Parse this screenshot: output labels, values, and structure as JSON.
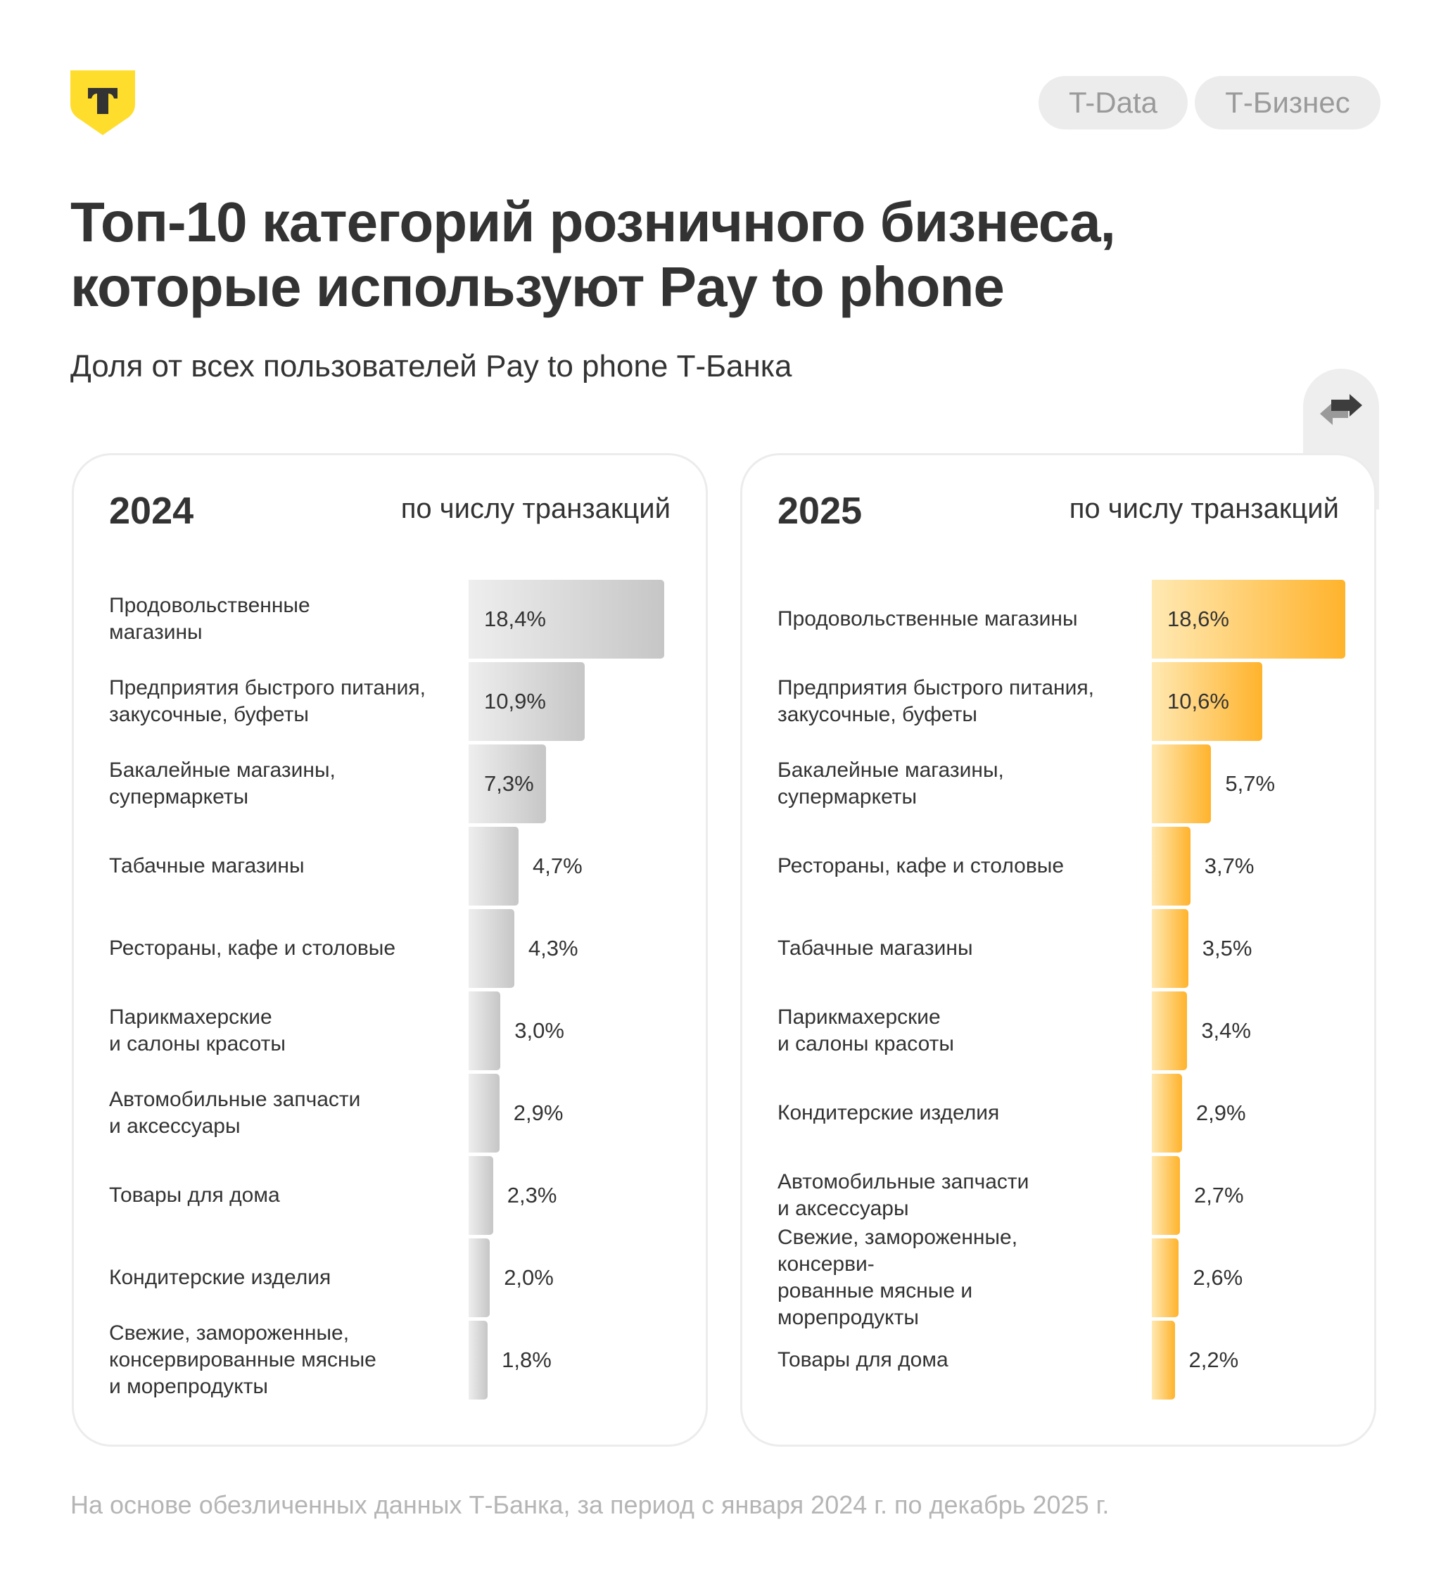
{
  "header": {
    "logo_letter": "Т",
    "pills": [
      "T-Data",
      "Т-Бизнес"
    ]
  },
  "title_lines": [
    "Топ-10 категорий розничного бизнеса,",
    "которые используют Pay to phone"
  ],
  "subtitle": "Доля от всех пользователей Pay to phone Т-Банка",
  "colors": {
    "brand": "#FFDD2D",
    "bar_2024_from": "#eeeeee",
    "bar_2024_to": "#c6c6c6",
    "bar_2025_from": "#ffe9b3",
    "bar_2025_to": "#ffb32c"
  },
  "chart_data": [
    {
      "type": "bar",
      "orientation": "horizontal",
      "title": "2024",
      "metric": "по числу транзакций",
      "unit": "%",
      "categories": [
        "Продовольственные\nмагазины",
        "Предприятия быстрого питания,\nзакусочные, буфеты",
        "Бакалейные магазины,\nсупермаркеты",
        "Табачные магазины",
        "Рестораны, кафе и столовые",
        "Парикмахерские\nи салоны красоты",
        "Автомобильные запчасти\nи аксессуары",
        "Товары для дома",
        "Кондитерские изделия",
        "Свежие, замороженные,\nконсервированные мясные\nи морепродукты"
      ],
      "values": [
        18.4,
        10.9,
        7.3,
        4.7,
        4.3,
        3.0,
        2.9,
        2.3,
        2.0,
        1.8
      ],
      "labels": [
        "18,4%",
        "10,9%",
        "7,3%",
        "4,7%",
        "4,3%",
        "3,0%",
        "2,9%",
        "2,3%",
        "2,0%",
        "1,8%"
      ]
    },
    {
      "type": "bar",
      "orientation": "horizontal",
      "title": "2025",
      "metric": "по числу транзакций",
      "unit": "%",
      "categories": [
        "Продовольственные магазины",
        "Предприятия быстрого питания,\nзакусочные, буфеты",
        "Бакалейные магазины,\nсупермаркеты",
        "Рестораны, кафе и столовые",
        "Табачные магазины",
        "Парикмахерские\nи салоны красоты",
        "Кондитерские изделия",
        "Автомобильные запчасти\nи аксессуары",
        "Свежие, замороженные, консерви-\nрованные мясные и морепродукты",
        "Товары для дома"
      ],
      "values": [
        18.6,
        10.6,
        5.7,
        3.7,
        3.5,
        3.4,
        2.9,
        2.7,
        2.6,
        2.2
      ],
      "labels": [
        "18,6%",
        "10,6%",
        "5,7%",
        "3,7%",
        "3,5%",
        "3,4%",
        "2,9%",
        "2,7%",
        "2,6%",
        "2,2%"
      ]
    }
  ],
  "footer": "На основе обезличенных данных Т-Банка, за период с января 2024 г. по декабрь 2025 г."
}
